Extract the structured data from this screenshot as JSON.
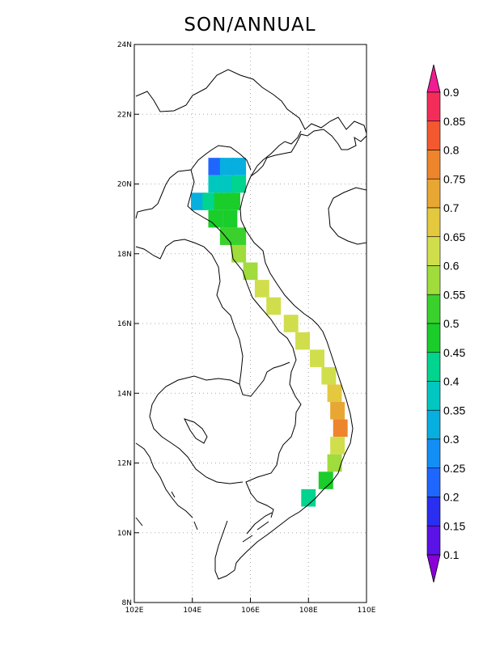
{
  "title": "SON/ANNUAL",
  "map": {
    "lon_range": [
      102,
      110
    ],
    "lat_range": [
      8,
      24
    ],
    "x_ticks": [
      "102E",
      "104E",
      "106E",
      "108E",
      "110E"
    ],
    "y_ticks": [
      "8N",
      "10N",
      "12N",
      "14N",
      "16N",
      "18N",
      "20N",
      "22N",
      "24N"
    ],
    "gridlines": "dotted"
  },
  "colorbar": {
    "labels": [
      "0.1",
      "0.15",
      "0.2",
      "0.25",
      "0.3",
      "0.35",
      "0.4",
      "0.45",
      "0.5",
      "0.55",
      "0.6",
      "0.65",
      "0.7",
      "0.75",
      "0.8",
      "0.85",
      "0.9"
    ],
    "colors": [
      "#8a00d8",
      "#5a12e6",
      "#2a2ef0",
      "#1f66ff",
      "#138ef5",
      "#07aee0",
      "#00c7c0",
      "#00d48f",
      "#1acd2a",
      "#3ad12c",
      "#a0dc3c",
      "#d0de4c",
      "#e4c83e",
      "#e8a632",
      "#ee842c",
      "#f4582e",
      "#f42c5a",
      "#f01c92"
    ]
  },
  "chart_data": {
    "type": "heatmap",
    "title": "SON/ANNUAL",
    "xlabel": "",
    "ylabel": "",
    "x_range": [
      102,
      110
    ],
    "y_range": [
      8,
      24
    ],
    "note_units": "ratio",
    "cells": [
      {
        "lon": 104.8,
        "lat": 20.5,
        "value": 0.22
      },
      {
        "lon": 105.2,
        "lat": 20.5,
        "value": 0.3
      },
      {
        "lon": 105.6,
        "lat": 20.5,
        "value": 0.33
      },
      {
        "lon": 104.8,
        "lat": 20.0,
        "value": 0.35
      },
      {
        "lon": 105.2,
        "lat": 20.0,
        "value": 0.38
      },
      {
        "lon": 105.6,
        "lat": 20.0,
        "value": 0.42
      },
      {
        "lon": 104.2,
        "lat": 19.5,
        "value": 0.32
      },
      {
        "lon": 104.6,
        "lat": 19.5,
        "value": 0.4
      },
      {
        "lon": 105.0,
        "lat": 19.5,
        "value": 0.45
      },
      {
        "lon": 105.4,
        "lat": 19.5,
        "value": 0.45
      },
      {
        "lon": 104.8,
        "lat": 19.0,
        "value": 0.45
      },
      {
        "lon": 105.3,
        "lat": 19.0,
        "value": 0.48
      },
      {
        "lon": 105.2,
        "lat": 18.5,
        "value": 0.5
      },
      {
        "lon": 105.6,
        "lat": 18.5,
        "value": 0.52
      },
      {
        "lon": 105.6,
        "lat": 18.0,
        "value": 0.55
      },
      {
        "lon": 106.0,
        "lat": 17.5,
        "value": 0.58
      },
      {
        "lon": 106.4,
        "lat": 17.0,
        "value": 0.6
      },
      {
        "lon": 106.8,
        "lat": 16.5,
        "value": 0.62
      },
      {
        "lon": 107.4,
        "lat": 16.0,
        "value": 0.62
      },
      {
        "lon": 107.8,
        "lat": 15.5,
        "value": 0.63
      },
      {
        "lon": 108.3,
        "lat": 15.0,
        "value": 0.6
      },
      {
        "lon": 108.7,
        "lat": 14.5,
        "value": 0.62
      },
      {
        "lon": 108.9,
        "lat": 14.0,
        "value": 0.65
      },
      {
        "lon": 109.0,
        "lat": 13.5,
        "value": 0.7
      },
      {
        "lon": 109.1,
        "lat": 13.0,
        "value": 0.75
      },
      {
        "lon": 109.0,
        "lat": 12.5,
        "value": 0.6
      },
      {
        "lon": 108.9,
        "lat": 12.0,
        "value": 0.55
      },
      {
        "lon": 108.6,
        "lat": 11.5,
        "value": 0.45
      },
      {
        "lon": 108.0,
        "lat": 11.0,
        "value": 0.4
      }
    ]
  }
}
